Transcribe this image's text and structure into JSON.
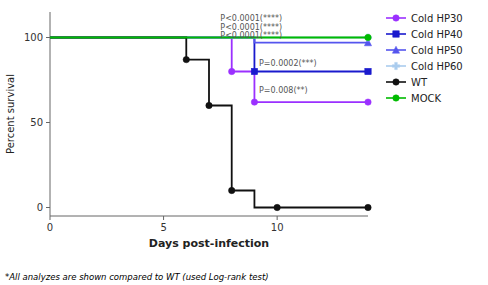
{
  "chart_data": {
    "type": "line",
    "xlabel": "Days post-infection",
    "ylabel": "Percent survival",
    "footnote": "*All analyzes are shown compared to WT (used Log-rank test)",
    "xlim": [
      0,
      14
    ],
    "ylim": [
      -5,
      115
    ],
    "xticks": [
      0,
      5,
      10
    ],
    "yticks": [
      0,
      50,
      100
    ],
    "legend": "right",
    "series": [
      {
        "name": "Cold HP30",
        "color": "#9B30FF",
        "marker": "circle",
        "x": [
          0,
          8,
          8,
          9,
          9,
          14
        ],
        "values": [
          100,
          100,
          80,
          80,
          62,
          62
        ],
        "marker_x": [
          8,
          9,
          14
        ],
        "marker_values": [
          80,
          62,
          62
        ]
      },
      {
        "name": "Cold HP40",
        "color": "#1A1ACD",
        "marker": "square",
        "x": [
          0,
          9,
          9,
          14
        ],
        "values": [
          100,
          100,
          80,
          80
        ],
        "marker_x": [
          9,
          14
        ],
        "marker_values": [
          80,
          80
        ]
      },
      {
        "name": "Cold HP50",
        "color": "#5555EE",
        "marker": "triangle",
        "x": [
          0,
          9,
          9,
          14
        ],
        "values": [
          100,
          100,
          97,
          97
        ],
        "marker_x": [
          14
        ],
        "marker_values": [
          97
        ]
      },
      {
        "name": "Cold HP60",
        "color": "#AACCEE",
        "marker": "plus",
        "x": [
          0,
          14
        ],
        "values": [
          100,
          100
        ],
        "marker_x": [
          14
        ],
        "marker_values": [
          100
        ]
      },
      {
        "name": "WT",
        "color": "#111111",
        "marker": "circle",
        "x": [
          0,
          6,
          6,
          7,
          7,
          8,
          8,
          9,
          9,
          10,
          10,
          14
        ],
        "values": [
          100,
          100,
          87,
          87,
          60,
          60,
          10,
          10,
          0,
          0,
          0,
          0
        ],
        "marker_x": [
          6,
          7,
          8,
          10,
          14
        ],
        "marker_values": [
          87,
          60,
          10,
          0,
          0
        ]
      },
      {
        "name": "MOCK",
        "color": "#00BB00",
        "marker": "circle",
        "x": [
          0,
          14
        ],
        "values": [
          100,
          100
        ],
        "marker_x": [
          14
        ],
        "marker_values": [
          100
        ]
      }
    ],
    "annotations": [
      {
        "text": "P<0.0001(****)",
        "x": 7.5,
        "y": 111
      },
      {
        "text": "P<0.0001(****)",
        "x": 7.5,
        "y": 106
      },
      {
        "text": "P<0.0001(****)",
        "x": 7.5,
        "y": 101
      },
      {
        "text": "P=0.0002(***)",
        "x": 9.2,
        "y": 85
      },
      {
        "text": "P=0.008(**)",
        "x": 9.2,
        "y": 69
      }
    ]
  }
}
